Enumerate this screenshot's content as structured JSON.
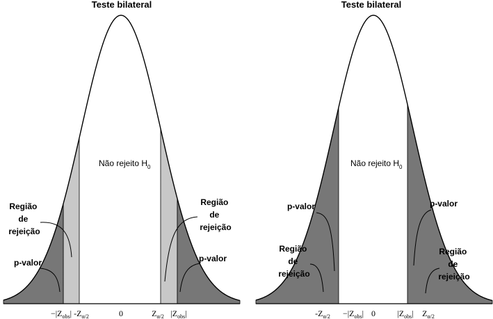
{
  "panels": [
    {
      "title": "Teste bilateral",
      "center_label": "Não rejeito H",
      "center_label_sub": "0",
      "left_region_label": [
        "Região",
        "de",
        "rejeição"
      ],
      "left_pvalue_label": "p-valor",
      "right_region_label": [
        "Região",
        "de",
        "rejeição"
      ],
      "right_pvalue_label": "p-valor",
      "tick_zero": "0",
      "ticks": {
        "left_a": "−|Z",
        "left_a_sub": "obs",
        "left_a_end": "|",
        "left_b": "-Z",
        "left_b_sub": "α/2",
        "right_a": "Z",
        "right_a_sub": "α/2",
        "right_b": "|Z",
        "right_b_sub": "obs",
        "right_b_end": "|"
      }
    },
    {
      "title": "Teste bilateral",
      "center_label": "Não rejeito H",
      "center_label_sub": "0",
      "left_pvalue_label": "p-valor",
      "left_region_label": [
        "Região",
        "de",
        "rejeição"
      ],
      "right_pvalue_label": "p-valor",
      "right_region_label": [
        "Região",
        "de",
        "rejeição"
      ],
      "tick_zero": "0",
      "ticks": {
        "left_a": "-Z",
        "left_a_sub": "α/2",
        "left_b": "−|Z",
        "left_b_sub": "obs",
        "left_b_end": "|",
        "right_a": "|Z",
        "right_a_sub": "obs",
        "right_a_end": "|",
        "right_b": "Z",
        "right_b_sub": "α/2"
      }
    }
  ],
  "colors": {
    "curve": "#000000",
    "light_fill": "#c8c8c8",
    "dark_fill": "#777777"
  }
}
